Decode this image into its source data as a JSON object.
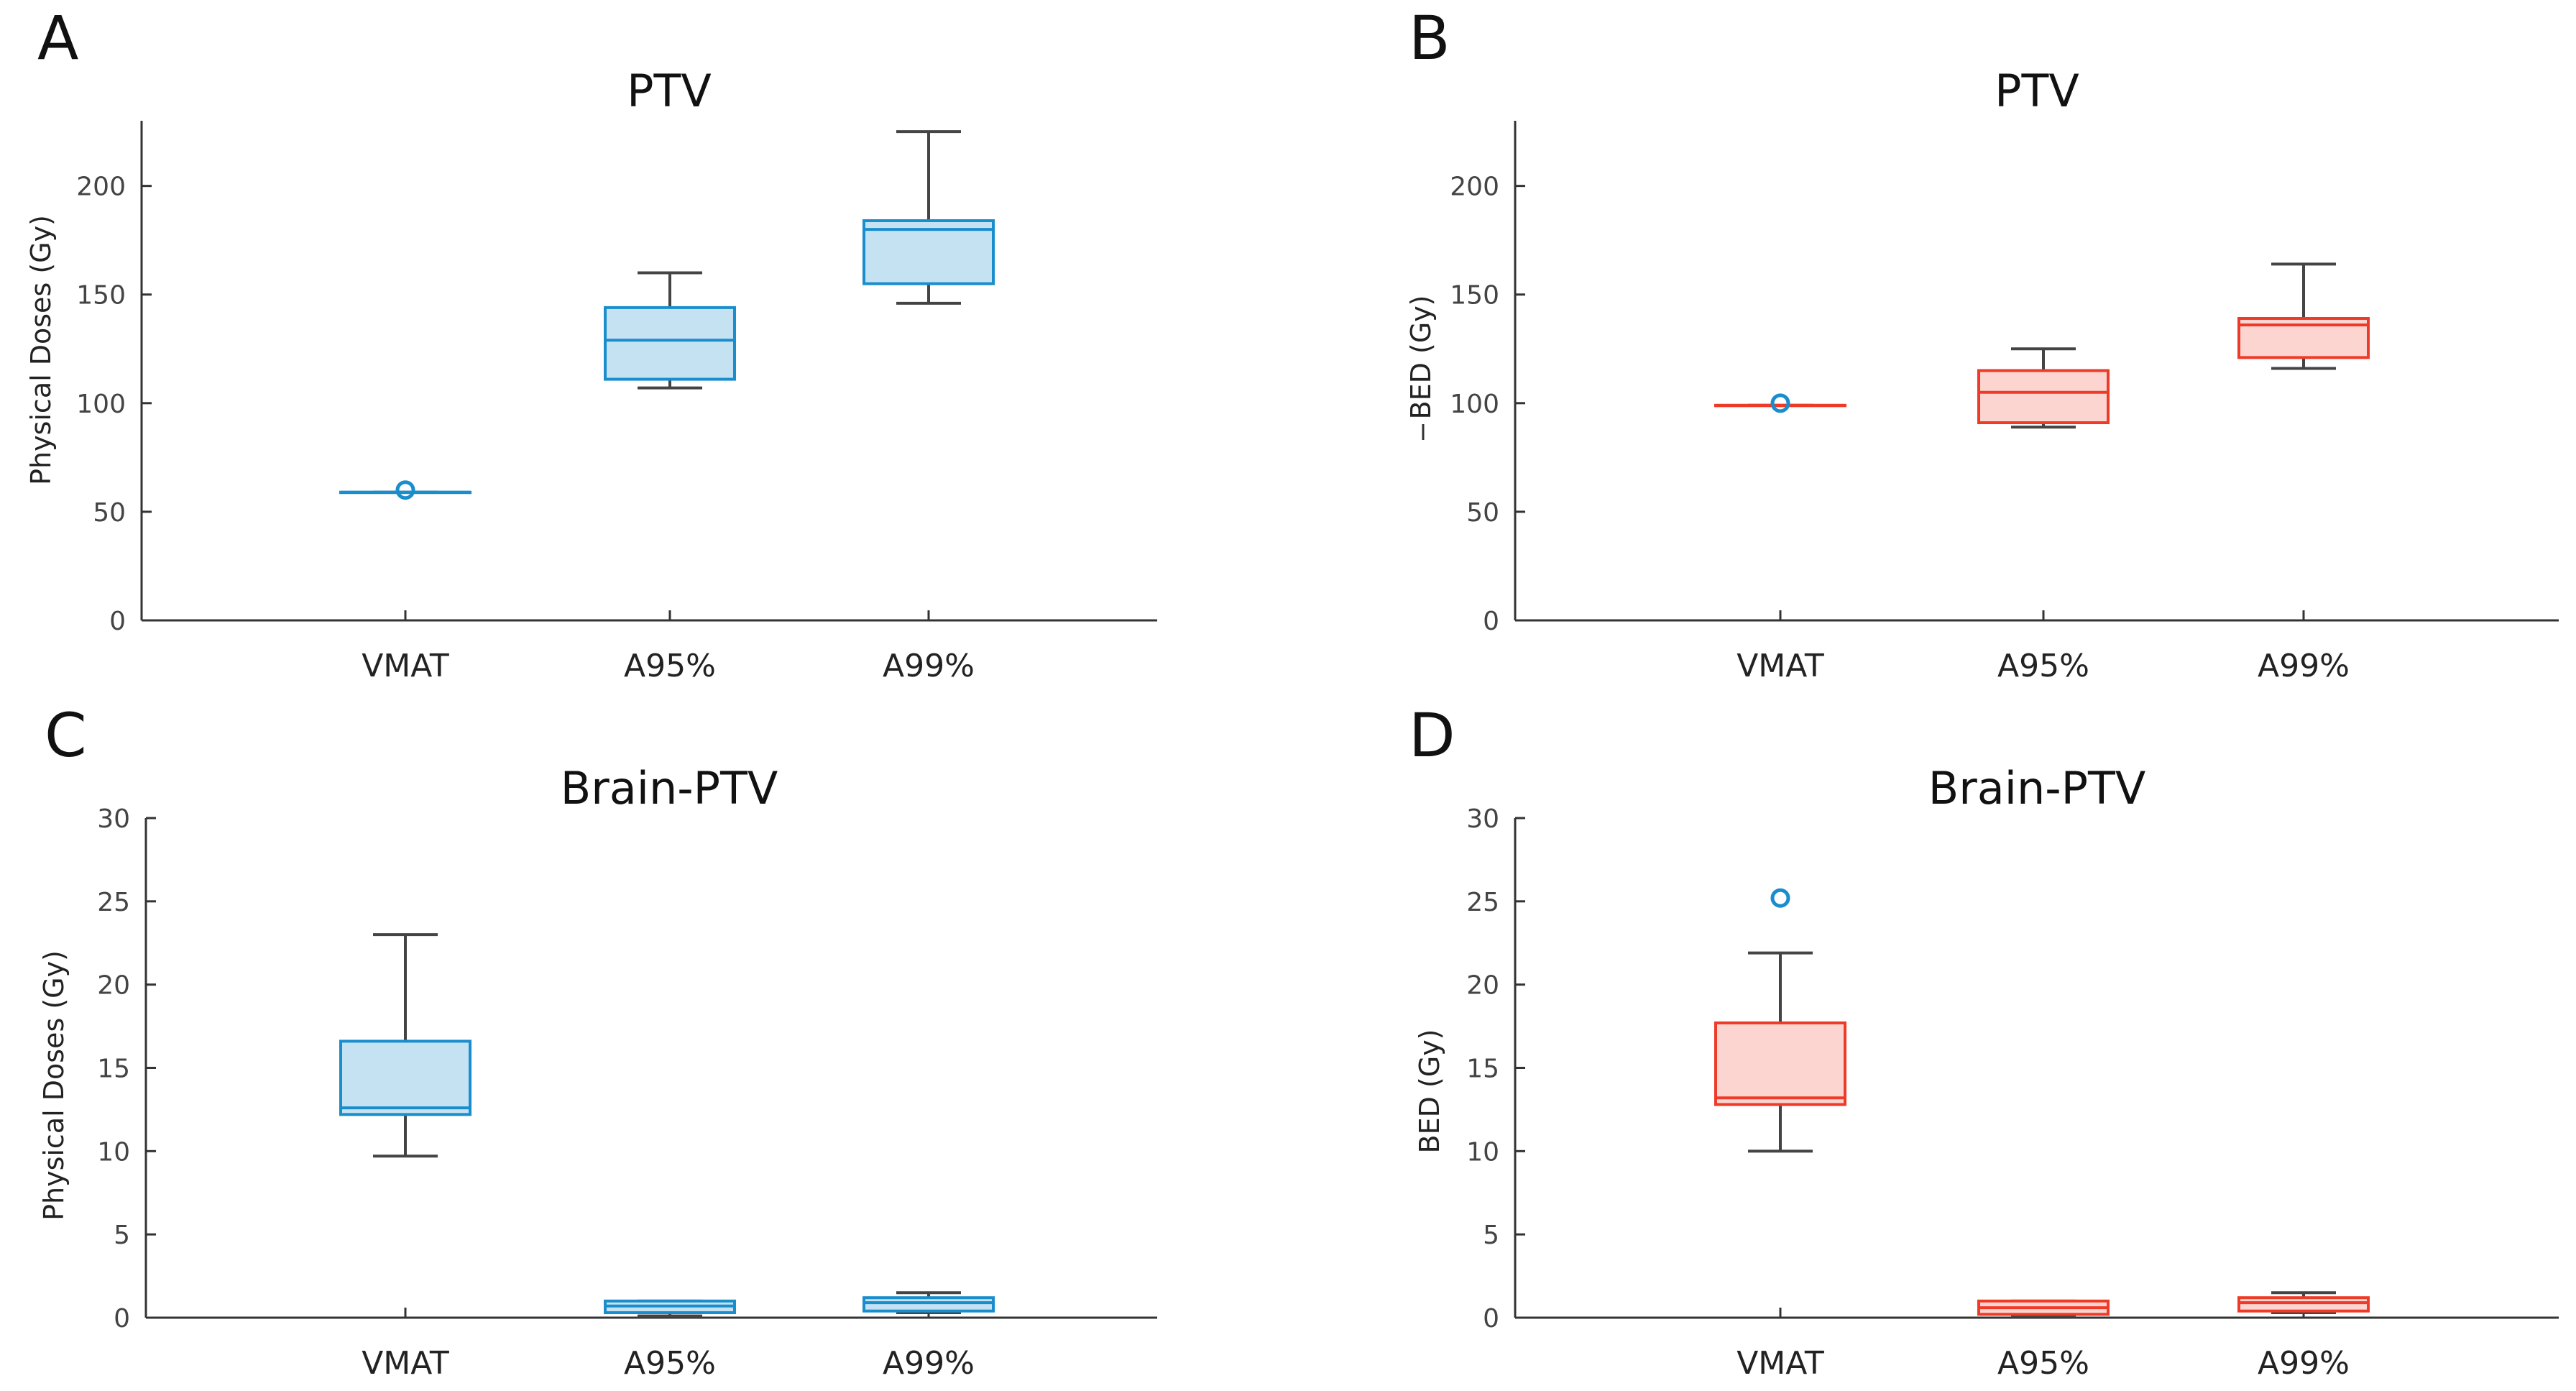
{
  "chart_data": [
    {
      "panel": "A",
      "type": "box",
      "title": "PTV",
      "ylabel": "Physical Doses (Gy)",
      "ylim": [
        0,
        230
      ],
      "yticks": [
        0,
        50,
        100,
        150,
        200
      ],
      "categories": [
        "VMAT",
        "A95%",
        "A99%"
      ],
      "color": "#1a8dcc",
      "fill": "#c5e2f3",
      "whisker_color": "#444444",
      "boxes": [
        {
          "min": 59,
          "q1": 59,
          "median": 59,
          "q3": 59,
          "max": 59,
          "outliers": [
            60
          ]
        },
        {
          "min": 107,
          "q1": 111,
          "median": 129,
          "q3": 144,
          "max": 160,
          "outliers": []
        },
        {
          "min": 146,
          "q1": 155,
          "median": 180,
          "q3": 184,
          "max": 225,
          "outliers": []
        }
      ]
    },
    {
      "panel": "B",
      "type": "box",
      "title": "PTV",
      "ylabel": "BED (Gy)",
      "ylim": [
        0,
        230
      ],
      "yticks": [
        0,
        50,
        100,
        150,
        200
      ],
      "categories": [
        "VMAT",
        "A95%",
        "A99%"
      ],
      "color": "#ee3b28",
      "fill": "#fcd4d0",
      "whisker_color": "#444444",
      "outlier_color": "#1a8dcc",
      "boxes": [
        {
          "min": 99,
          "q1": 99,
          "median": 99,
          "q3": 99,
          "max": 99,
          "outliers": [
            100
          ]
        },
        {
          "min": 89,
          "q1": 91,
          "median": 105,
          "q3": 115,
          "max": 125,
          "outliers": []
        },
        {
          "min": 116,
          "q1": 121,
          "median": 136,
          "q3": 139,
          "max": 164,
          "outliers": []
        }
      ]
    },
    {
      "panel": "C",
      "type": "box",
      "title": "Brain-PTV",
      "ylabel": "Physical Doses (Gy)",
      "ylim": [
        0,
        30
      ],
      "yticks": [
        0,
        5,
        10,
        15,
        20,
        25,
        30
      ],
      "categories": [
        "VMAT",
        "A95%",
        "A99%"
      ],
      "color": "#1a8dcc",
      "fill": "#c5e2f3",
      "whisker_color": "#444444",
      "boxes": [
        {
          "min": 9.7,
          "q1": 12.2,
          "median": 12.6,
          "q3": 16.6,
          "max": 23,
          "outliers": []
        },
        {
          "min": 0.1,
          "q1": 0.3,
          "median": 0.7,
          "q3": 1.0,
          "max": 1.0,
          "outliers": []
        },
        {
          "min": 0.3,
          "q1": 0.4,
          "median": 0.9,
          "q3": 1.2,
          "max": 1.5,
          "outliers": []
        }
      ]
    },
    {
      "panel": "D",
      "type": "box",
      "title": "Brain-PTV",
      "ylabel": "BED (Gy)",
      "ylim": [
        0,
        30
      ],
      "yticks": [
        0,
        5,
        10,
        15,
        20,
        25,
        30
      ],
      "categories": [
        "VMAT",
        "A95%",
        "A99%"
      ],
      "color": "#ee3b28",
      "fill": "#fcd4d0",
      "whisker_color": "#444444",
      "outlier_color": "#1a8dcc",
      "boxes": [
        {
          "min": 10,
          "q1": 12.8,
          "median": 13.2,
          "q3": 17.7,
          "max": 21.9,
          "outliers": [
            25.2
          ]
        },
        {
          "min": 0.1,
          "q1": 0.2,
          "median": 0.6,
          "q3": 1.0,
          "max": 1.0,
          "outliers": []
        },
        {
          "min": 0.3,
          "q1": 0.4,
          "median": 0.9,
          "q3": 1.2,
          "max": 1.5,
          "outliers": []
        }
      ]
    }
  ]
}
